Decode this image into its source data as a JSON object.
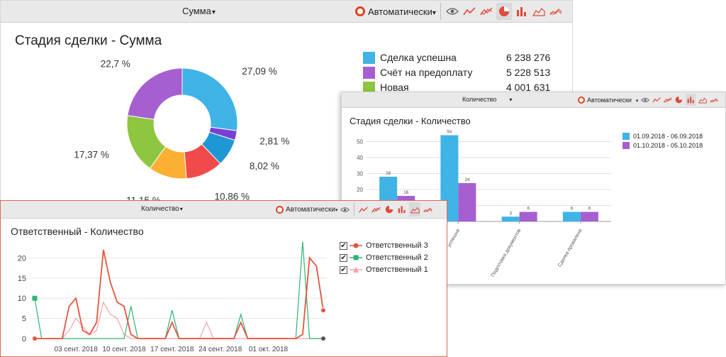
{
  "panel1": {
    "toolbar": {
      "title": "Сумма",
      "mode": "Автоматически"
    },
    "title": "Стадия сделки - Сумма",
    "legend": [
      {
        "label": "Сделка успешна",
        "value": "6 238 276",
        "color": "#3fb3e6"
      },
      {
        "label": "Счёт на предоплату",
        "value": "5 228 513",
        "color": "#a65fd0"
      },
      {
        "label": "Новая",
        "value": "4 001 631",
        "color": "#8dc63f"
      }
    ],
    "chart_data": {
      "type": "pie",
      "title": "Стадия сделки - Сумма",
      "slices": [
        {
          "label": "Сделка успешна",
          "percent": 27.09,
          "text": "27,09 %",
          "color": "#3fb3e6"
        },
        {
          "label": "",
          "percent": 2.81,
          "text": "2,81 %",
          "color": "#7a3fd4"
        },
        {
          "label": "",
          "percent": 8.02,
          "text": "8,02 %",
          "color": "#1f97d4"
        },
        {
          "label": "",
          "percent": 10.86,
          "text": "10,86 %",
          "color": "#f04a4a"
        },
        {
          "label": "",
          "percent": 11.15,
          "text": "11,15 %",
          "color": "#fbb034"
        },
        {
          "label": "Новая",
          "percent": 17.37,
          "text": "17,37 %",
          "color": "#8dc63f"
        },
        {
          "label": "Счёт на предоплату",
          "percent": 22.7,
          "text": "22,7 %",
          "color": "#a65fd0"
        }
      ]
    }
  },
  "panel2": {
    "toolbar": {
      "title": "Количество",
      "mode": "Автоматически"
    },
    "title": "Стадия сделки - Количество",
    "legend": [
      {
        "label": "01.09.2018 - 06.09.2018",
        "color": "#3fb3e6"
      },
      {
        "label": "01.10.2018 - 05.10.2018",
        "color": "#a65fd0"
      }
    ],
    "chart_data": {
      "type": "bar",
      "title": "Стадия сделки - Количество",
      "categories": [
        "",
        "успешна",
        "Подготовка документов",
        "Сделка провалена"
      ],
      "series": [
        {
          "name": "01.09.2018 - 06.09.2018",
          "values": [
            28,
            54,
            3,
            6
          ],
          "color": "#3fb3e6"
        },
        {
          "name": "01.10.2018 - 05.10.2018",
          "values": [
            16,
            24,
            6,
            6
          ],
          "color": "#a65fd0"
        }
      ],
      "yticks": [
        10,
        20,
        30,
        40,
        50
      ],
      "ylim": [
        0,
        60
      ],
      "grid": true
    }
  },
  "panel3": {
    "toolbar": {
      "title": "Количество",
      "mode": "Автоматически"
    },
    "title": "Ответственный - Количество",
    "legend": [
      {
        "label": "Ответственный 3",
        "color": "#e8533f",
        "marker": "circle"
      },
      {
        "label": "Ответственный 2",
        "color": "#2bb673",
        "marker": "square"
      },
      {
        "label": "Ответственный 1",
        "color": "#f4a3a8",
        "marker": "triangle"
      }
    ],
    "chart_data": {
      "type": "line",
      "title": "Ответственный - Количество",
      "x_labels": [
        "03 сент. 2018",
        "10 сент. 2018",
        "17 сент. 2018",
        "24 сент. 2018",
        "01 окт. 2018"
      ],
      "x_label_index": [
        6,
        13,
        20,
        27,
        34
      ],
      "yticks": [
        0,
        5,
        10,
        15,
        20
      ],
      "ylim": [
        0,
        25
      ],
      "series": [
        {
          "name": "Ответственный 3",
          "color": "#e8533f",
          "values": [
            0,
            0,
            0,
            0,
            0,
            8,
            10,
            2,
            1,
            4,
            22,
            14,
            9,
            8,
            1,
            0,
            0,
            0,
            0,
            0,
            4,
            0,
            0,
            0,
            0,
            0,
            0,
            0,
            0,
            0,
            4,
            0,
            0,
            0,
            0,
            0,
            0,
            0,
            0,
            1,
            20,
            18,
            7
          ]
        },
        {
          "name": "Ответственный 2",
          "color": "#2bb673",
          "values": [
            10,
            0,
            0,
            0,
            0,
            0,
            0,
            0,
            0,
            0,
            0,
            0,
            0,
            0,
            8,
            0,
            0,
            0,
            0,
            0,
            7,
            0,
            0,
            0,
            0,
            0,
            0,
            0,
            0,
            0,
            6,
            0,
            0,
            0,
            0,
            0,
            0,
            0,
            0,
            24,
            0,
            0,
            0
          ]
        },
        {
          "name": "Ответственный 1",
          "color": "#f4a3a8",
          "values": [
            0,
            0,
            0,
            0,
            0,
            2,
            5,
            3,
            1,
            2,
            9,
            6,
            5,
            1,
            0,
            0,
            0,
            0,
            0,
            0,
            0,
            0,
            0,
            0,
            0,
            4,
            0,
            0,
            0,
            0,
            0,
            0,
            0,
            0,
            0,
            0,
            0,
            0,
            0,
            0,
            0,
            0,
            0
          ]
        }
      ]
    }
  }
}
